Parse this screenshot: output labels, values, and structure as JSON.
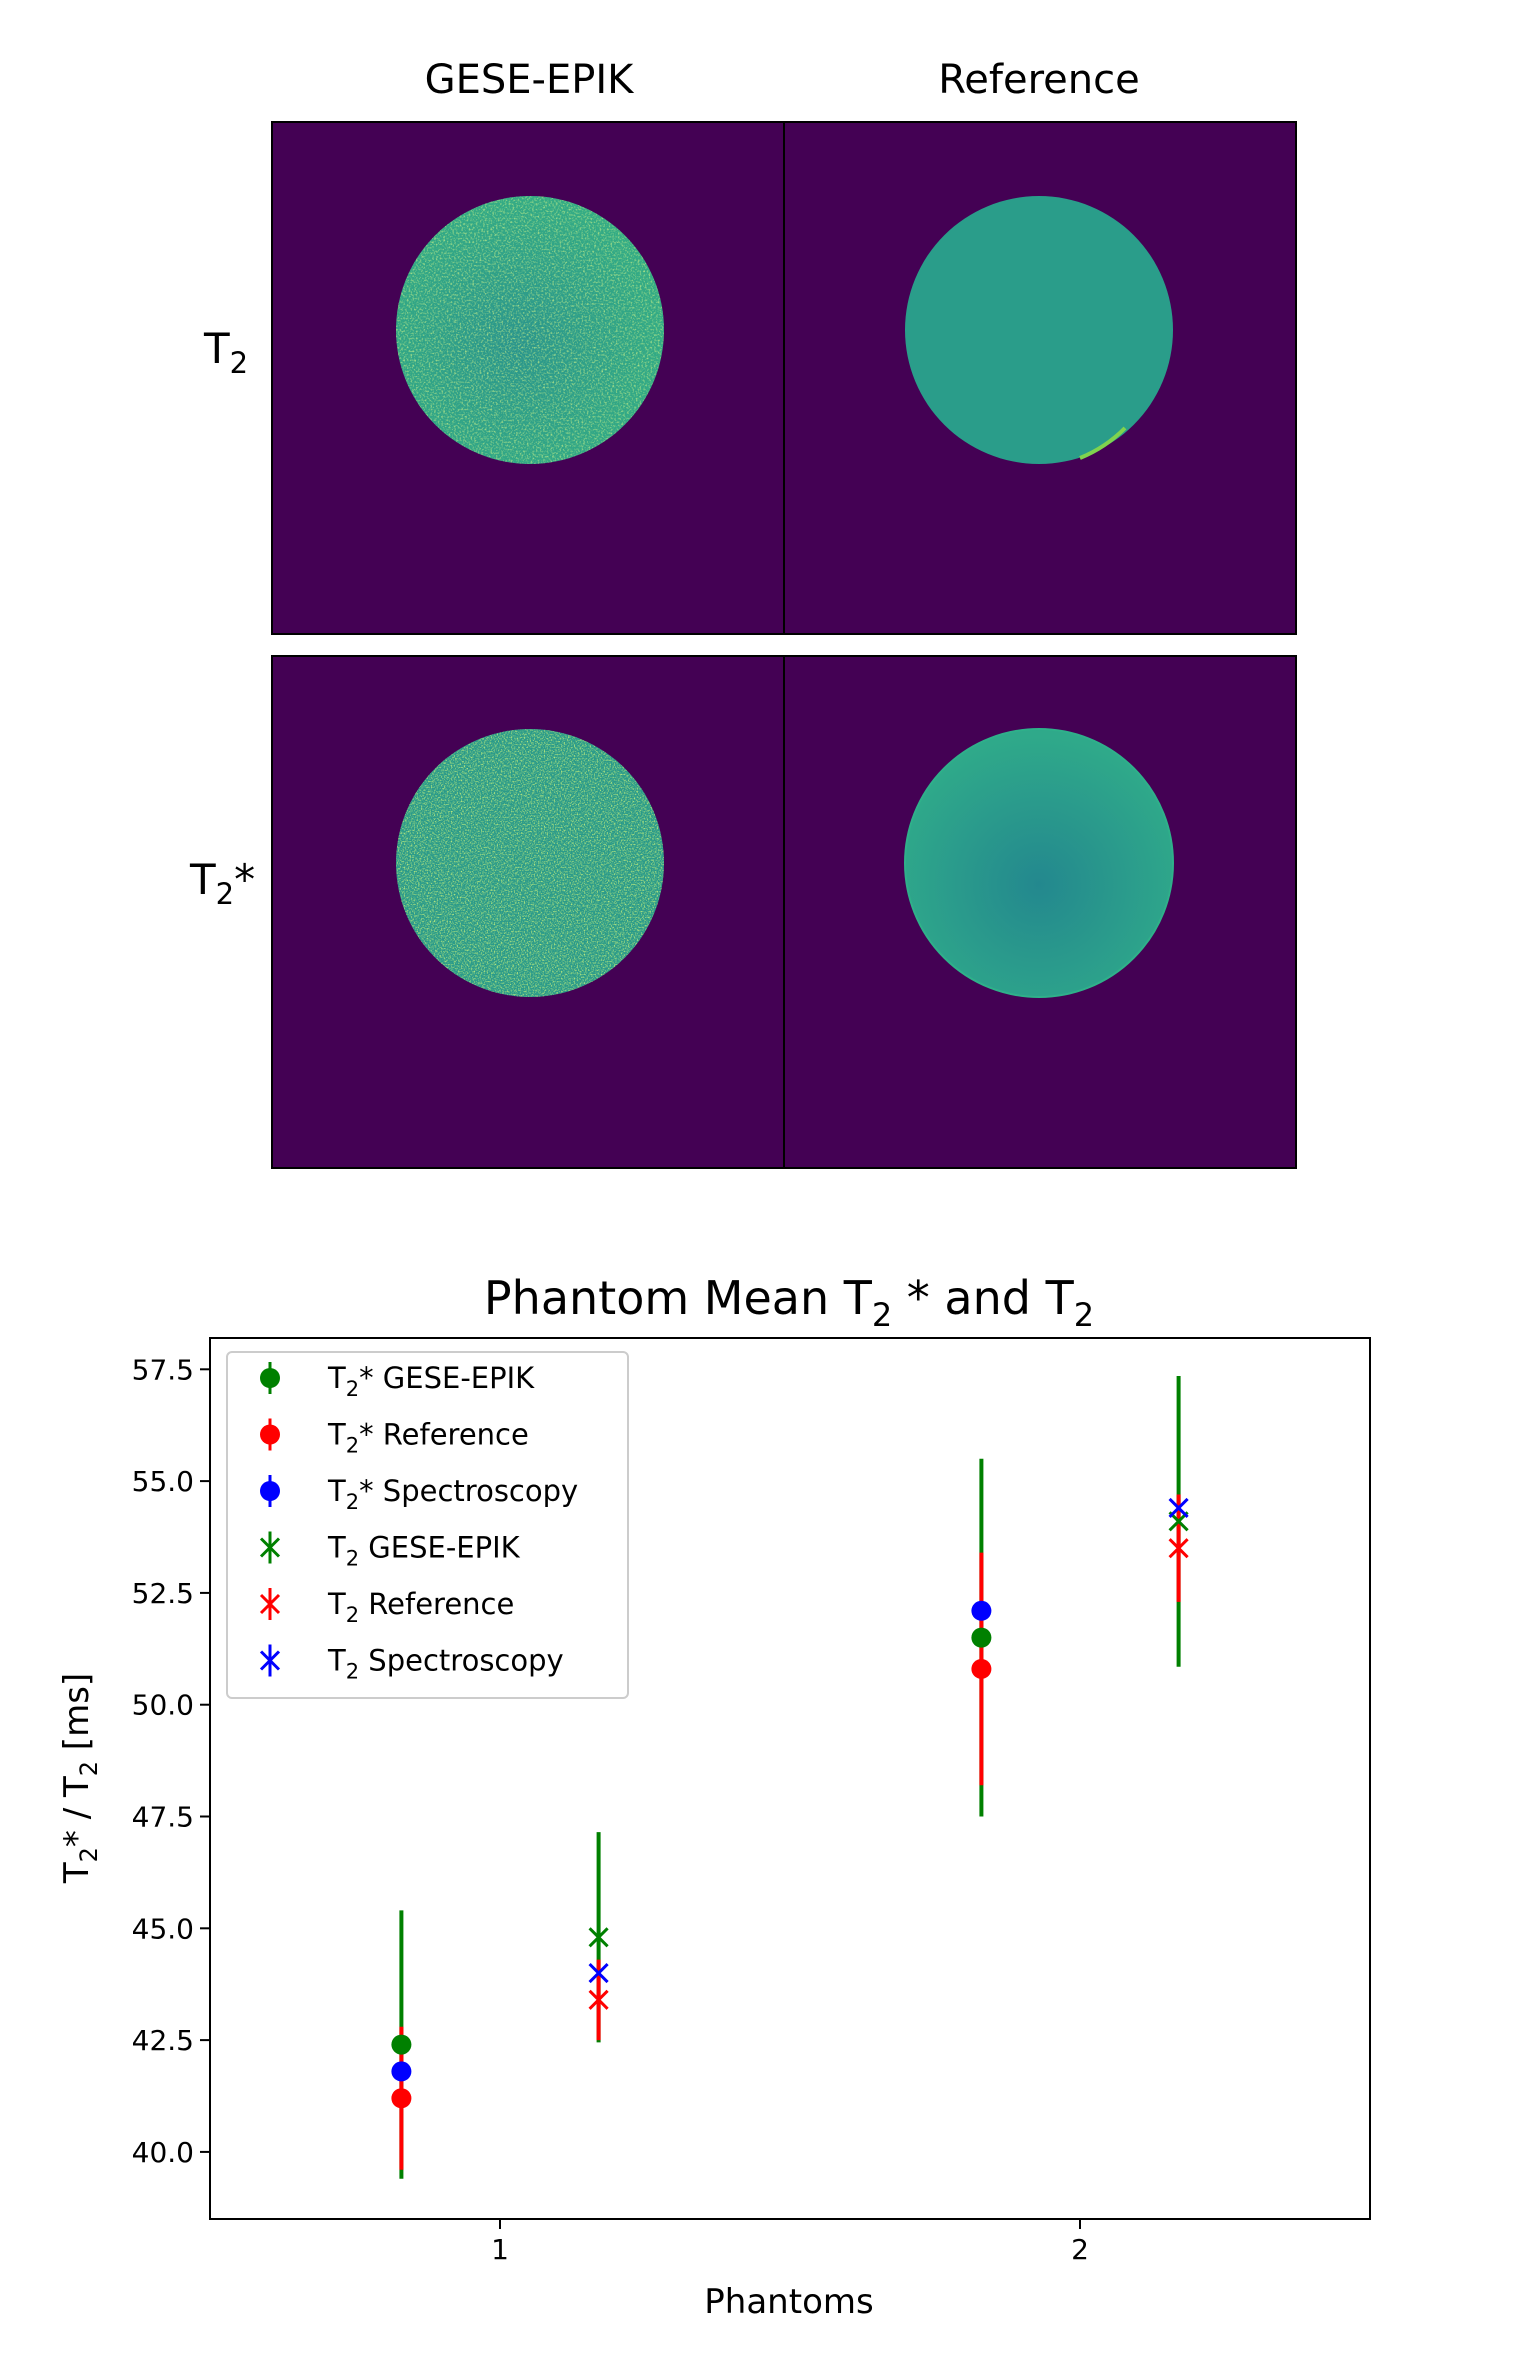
{
  "panel_grid": {
    "column_titles": [
      "GESE-EPIK",
      "Reference"
    ],
    "row_labels": [
      {
        "base": "T",
        "sub": "2",
        "tail": ""
      },
      {
        "base": "T",
        "sub": "2",
        "tail": "*"
      }
    ],
    "colors": {
      "background": "#440154",
      "disk_fill": "#2a9d8a",
      "disk_edge": "#3fb87a",
      "border": "#000000"
    }
  },
  "chart_data": {
    "type": "scatter",
    "title": {
      "pre": "Phantom Mean T",
      "sub1": "2",
      "mid": " *  and T",
      "sub2": "2"
    },
    "xlabel": "Phantoms",
    "ylabel": {
      "a": "T",
      "sub1": "2",
      "b": "* / T",
      "sub2": "2",
      "c": " [ms]"
    },
    "xlim": [
      0.5,
      2.5
    ],
    "ylim": [
      38.5,
      58.2
    ],
    "xticks": [
      1,
      2
    ],
    "yticks": [
      40.0,
      42.5,
      45.0,
      47.5,
      50.0,
      52.5,
      55.0,
      57.5
    ],
    "ytick_labels": [
      "40.0",
      "42.5",
      "45.0",
      "47.5",
      "50.0",
      "52.5",
      "55.0",
      "57.5"
    ],
    "legend_placement": "upper-left",
    "series": [
      {
        "name": "T₂* GESE-EPIK",
        "label": {
          "a": "T",
          "sub": "2",
          "b": "* GESE-EPIK"
        },
        "marker": "circle",
        "color": "#008000",
        "points": [
          {
            "x": 0.83,
            "y": 42.4,
            "err": 3.0
          },
          {
            "x": 1.83,
            "y": 51.5,
            "err": 4.0
          }
        ]
      },
      {
        "name": "T₂* Reference",
        "label": {
          "a": "T",
          "sub": "2",
          "b": "* Reference"
        },
        "marker": "circle",
        "color": "#ff0000",
        "points": [
          {
            "x": 0.83,
            "y": 41.2,
            "err": 1.6
          },
          {
            "x": 1.83,
            "y": 50.8,
            "err": 2.6
          }
        ]
      },
      {
        "name": "T₂* Spectroscopy",
        "label": {
          "a": "T",
          "sub": "2",
          "b": "* Spectroscopy"
        },
        "marker": "circle",
        "color": "#0000ff",
        "points": [
          {
            "x": 0.83,
            "y": 41.8,
            "err": 0
          },
          {
            "x": 1.83,
            "y": 52.1,
            "err": 0
          }
        ]
      },
      {
        "name": "T₂ GESE-EPIK",
        "label": {
          "a": "T",
          "sub": "2",
          "b": " GESE-EPIK"
        },
        "marker": "x",
        "color": "#008000",
        "points": [
          {
            "x": 1.17,
            "y": 44.8,
            "err": 2.35
          },
          {
            "x": 2.17,
            "y": 54.1,
            "err": 3.25
          }
        ]
      },
      {
        "name": "T₂ Reference",
        "label": {
          "a": "T",
          "sub": "2",
          "b": " Reference"
        },
        "marker": "x",
        "color": "#ff0000",
        "points": [
          {
            "x": 1.17,
            "y": 43.4,
            "err": 0.9
          },
          {
            "x": 2.17,
            "y": 53.5,
            "err": 1.2
          }
        ]
      },
      {
        "name": "T₂ Spectroscopy",
        "label": {
          "a": "T",
          "sub": "2",
          "b": " Spectroscopy"
        },
        "marker": "x",
        "color": "#0000ff",
        "points": [
          {
            "x": 1.17,
            "y": 44.0,
            "err": 0
          },
          {
            "x": 2.17,
            "y": 54.4,
            "err": 0
          }
        ]
      }
    ]
  }
}
